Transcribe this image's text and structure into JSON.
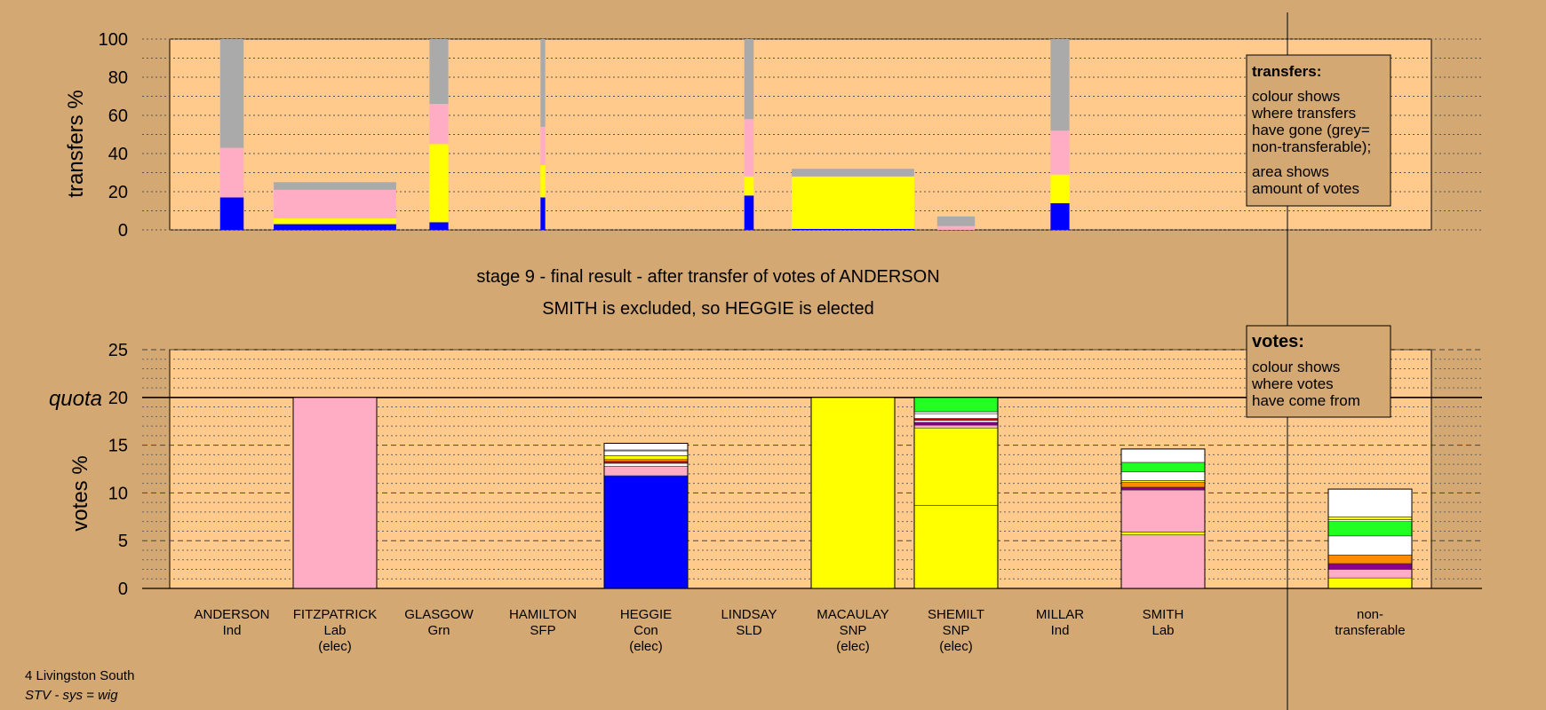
{
  "colors": {
    "background": "#d4a872",
    "plot_background": "#ffca8c",
    "Con": "#0000ff",
    "Lab": "#ffadc4",
    "SNP": "#ffff00",
    "Grn": "#22ff22",
    "SFP": "#880088",
    "SLD": "#ff8c00",
    "Ind": "#ffffff",
    "SSP": "#cc0000",
    "nontransferable": "#aaaaaa"
  },
  "title": {
    "line1": "stage 9 - final result - after transfer of votes of ANDERSON",
    "line2": "SMITH is excluded, so HEGGIE is elected"
  },
  "footer": {
    "ward": "4 Livingston South",
    "system": "STV - sys = wig"
  },
  "legend_transfers": {
    "heading": "transfers:",
    "lines1": [
      "colour shows",
      "where transfers",
      "have gone (grey=",
      "non-transferable);"
    ],
    "lines2": [
      "area shows",
      "amount of votes"
    ]
  },
  "legend_votes": {
    "heading": "votes:",
    "lines": [
      "colour shows",
      "where votes",
      "have come from"
    ]
  },
  "chart_data": [
    {
      "type": "bar",
      "name": "transfers",
      "ylabel": "transfers %",
      "ylim": [
        0,
        100
      ],
      "yticks": [
        0,
        20,
        40,
        60,
        80,
        100
      ],
      "grid": true,
      "note": "stacked transfer bars; width shows amount of votes",
      "bars": [
        {
          "candidate": "ANDERSON",
          "width": 0.5,
          "segments": [
            {
              "party": "Con",
              "value": 17
            },
            {
              "party": "Lab",
              "value": 26
            },
            {
              "party": "nontransferable",
              "value": 57
            }
          ]
        },
        {
          "candidate": "FITZPATRICK",
          "width": 2.6,
          "segments": [
            {
              "party": "Con",
              "value": 3
            },
            {
              "party": "SNP",
              "value": 3
            },
            {
              "party": "Lab",
              "value": 15
            },
            {
              "party": "nontransferable",
              "value": 4
            }
          ]
        },
        {
          "candidate": "GLASGOW",
          "width": 0.4,
          "segments": [
            {
              "party": "Con",
              "value": 4
            },
            {
              "party": "SNP",
              "value": 41
            },
            {
              "party": "Lab",
              "value": 21
            },
            {
              "party": "nontransferable",
              "value": 34
            }
          ]
        },
        {
          "candidate": "HAMILTON",
          "width": 0.1,
          "segments": [
            {
              "party": "Con",
              "value": 17
            },
            {
              "party": "SNP",
              "value": 17
            },
            {
              "party": "Lab",
              "value": 20
            },
            {
              "party": "nontransferable",
              "value": 46
            }
          ]
        },
        {
          "candidate": "LINDSAY",
          "width": 0.2,
          "segments": [
            {
              "party": "Con",
              "value": 18
            },
            {
              "party": "SNP",
              "value": 10
            },
            {
              "party": "Lab",
              "value": 30
            },
            {
              "party": "nontransferable",
              "value": 42
            }
          ]
        },
        {
          "candidate": "MACAULAY",
          "width": 2.6,
          "segments": [
            {
              "party": "Con",
              "value": 0.5
            },
            {
              "party": "SNP",
              "value": 27.5
            },
            {
              "party": "nontransferable",
              "value": 4
            }
          ]
        },
        {
          "candidate": "SHEMILT",
          "width": 0.8,
          "segments": [
            {
              "party": "Lab",
              "value": 2
            },
            {
              "party": "nontransferable",
              "value": 5
            }
          ]
        },
        {
          "candidate": "MILLAR",
          "width": 0.4,
          "segments": [
            {
              "party": "Con",
              "value": 14
            },
            {
              "party": "SNP",
              "value": 15
            },
            {
              "party": "Lab",
              "value": 23
            },
            {
              "party": "nontransferable",
              "value": 48
            }
          ]
        }
      ]
    },
    {
      "type": "bar",
      "name": "votes",
      "ylabel": "votes %",
      "ylim": [
        0,
        25
      ],
      "yticks": [
        0,
        5,
        10,
        15,
        20,
        25
      ],
      "quota": 20,
      "quota_label": "quota",
      "grid": true,
      "categories": [
        {
          "name": "ANDERSON",
          "party": "Ind",
          "status": ""
        },
        {
          "name": "FITZPATRICK",
          "party": "Lab",
          "status": "(elec)"
        },
        {
          "name": "GLASGOW",
          "party": "Grn",
          "status": ""
        },
        {
          "name": "HAMILTON",
          "party": "SFP",
          "status": ""
        },
        {
          "name": "HEGGIE",
          "party": "Con",
          "status": "(elec)"
        },
        {
          "name": "LINDSAY",
          "party": "SLD",
          "status": ""
        },
        {
          "name": "MACAULAY",
          "party": "SNP",
          "status": "(elec)"
        },
        {
          "name": "SHEMILT",
          "party": "SNP",
          "status": "(elec)"
        },
        {
          "name": "MILLAR",
          "party": "Ind",
          "status": ""
        },
        {
          "name": "SMITH",
          "party": "Lab",
          "status": ""
        },
        {
          "name": "non-",
          "party": "transferable",
          "status": ""
        }
      ],
      "stacks": [
        [],
        [
          {
            "party": "Lab",
            "value": 20
          }
        ],
        [],
        [],
        [
          {
            "party": "Con",
            "value": 11.8
          },
          {
            "party": "Lab",
            "value": 1.0
          },
          {
            "party": "Ind",
            "value": 0.3
          },
          {
            "party": "SSP",
            "value": 0.2
          },
          {
            "party": "SLD",
            "value": 0.2
          },
          {
            "party": "SNP",
            "value": 0.4
          },
          {
            "party": "Ind",
            "value": 0.5
          },
          {
            "party": "SNP",
            "value": 0.1
          },
          {
            "party": "Ind",
            "value": 0.7
          }
        ],
        [],
        [
          {
            "party": "SNP",
            "value": 20
          }
        ],
        [
          {
            "party": "SNP",
            "value": 8.7
          },
          {
            "party": "SNP",
            "value": 8.1
          },
          {
            "party": "Lab",
            "value": 0.3
          },
          {
            "party": "SFP",
            "value": 0.3
          },
          {
            "party": "Ind",
            "value": 0.2
          },
          {
            "party": "SSP",
            "value": 0.2
          },
          {
            "party": "Ind",
            "value": 0.5
          },
          {
            "party": "Ind",
            "value": 0.2
          },
          {
            "party": "Grn",
            "value": 1.5
          }
        ],
        [],
        [
          {
            "party": "Lab",
            "value": 5.6
          },
          {
            "party": "SNP",
            "value": 0.3
          },
          {
            "party": "Lab",
            "value": 4.4
          },
          {
            "party": "SFP",
            "value": 0.3
          },
          {
            "party": "SLD",
            "value": 0.5
          },
          {
            "party": "SNP",
            "value": 0.2
          },
          {
            "party": "Ind",
            "value": 0.9
          },
          {
            "party": "Grn",
            "value": 1.0
          },
          {
            "party": "Ind",
            "value": 1.4
          }
        ],
        [
          {
            "party": "SNP",
            "value": 1.1
          },
          {
            "party": "Lab",
            "value": 0.9
          },
          {
            "party": "SFP",
            "value": 0.6
          },
          {
            "party": "SLD",
            "value": 0.9
          },
          {
            "party": "Ind",
            "value": 2.0
          },
          {
            "party": "Grn",
            "value": 1.5
          },
          {
            "party": "Ind",
            "value": 0.2
          },
          {
            "party": "SNP",
            "value": 0.3
          },
          {
            "party": "Ind",
            "value": 2.9
          }
        ]
      ]
    }
  ]
}
